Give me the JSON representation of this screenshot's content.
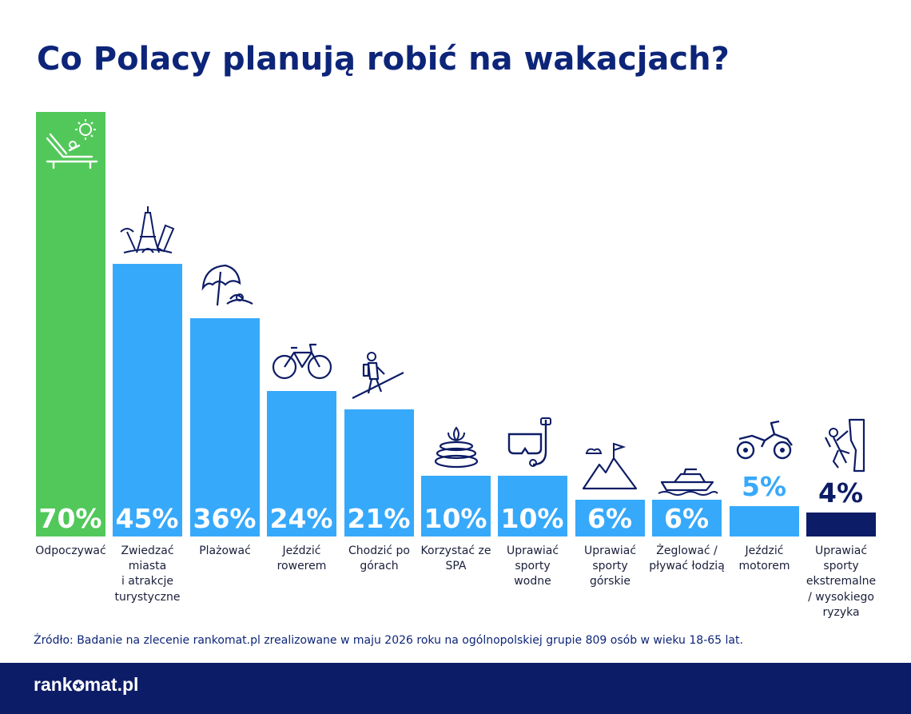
{
  "title": "Co Polacy planują robić na wakacjach?",
  "source": "Źródło: Badanie na zlecenie rankomat.pl zrealizowane w maju 2026 roku na ogólnopolskiej grupie 809 osób w wieku 18-65 lat.",
  "brand": {
    "logo_part1": "rank",
    "logo_star": "✪",
    "logo_part2": "mat.pl"
  },
  "colors": {
    "title": "#0d2579",
    "highlight_bar": "#52c85a",
    "default_bar": "#37a9fb",
    "dark_bar": "#0d1c66",
    "footer": "#0d1c66",
    "icon_stroke": "#0d1c66"
  },
  "chart_data": {
    "type": "bar",
    "title": "Co Polacy planują robić na wakacjach?",
    "unit": "%",
    "categories": [
      "Odpoczywać",
      "Zwiedzać\nmiasta\ni atrakcje\nturystyczne",
      "Plażować",
      "Jeździć\nrowerem",
      "Chodzić po\ngórach",
      "Korzystać ze\nSPA",
      "Uprawiać\nsporty\nwodne",
      "Uprawiać\nsporty\ngórskie",
      "Żeglować /\npływać łodzią",
      "Jeździć\nmotorem",
      "Uprawiać\nsporty\nekstremalne\n/ wysokiego\nryzyka"
    ],
    "values": [
      70,
      45,
      36,
      24,
      21,
      10,
      10,
      6,
      6,
      5,
      4
    ],
    "value_labels": [
      "70%",
      "45%",
      "36%",
      "24%",
      "21%",
      "10%",
      "10%",
      "6%",
      "6%",
      "5%",
      "4%"
    ],
    "bar_colors": [
      "#52c85a",
      "#37a9fb",
      "#37a9fb",
      "#37a9fb",
      "#37a9fb",
      "#37a9fb",
      "#37a9fb",
      "#37a9fb",
      "#37a9fb",
      "#37a9fb",
      "#0d1c66"
    ],
    "icons": [
      "sun-lounger-icon",
      "eiffel-tower-icon",
      "beach-umbrella-icon",
      "bicycle-icon",
      "hiker-icon",
      "spa-stones-icon",
      "snorkel-mask-icon",
      "mountain-flag-icon",
      "motor-boat-icon",
      "quad-bike-icon",
      "rock-climber-icon"
    ],
    "ylim": [
      0,
      70
    ],
    "grid": false,
    "legend": "none"
  }
}
